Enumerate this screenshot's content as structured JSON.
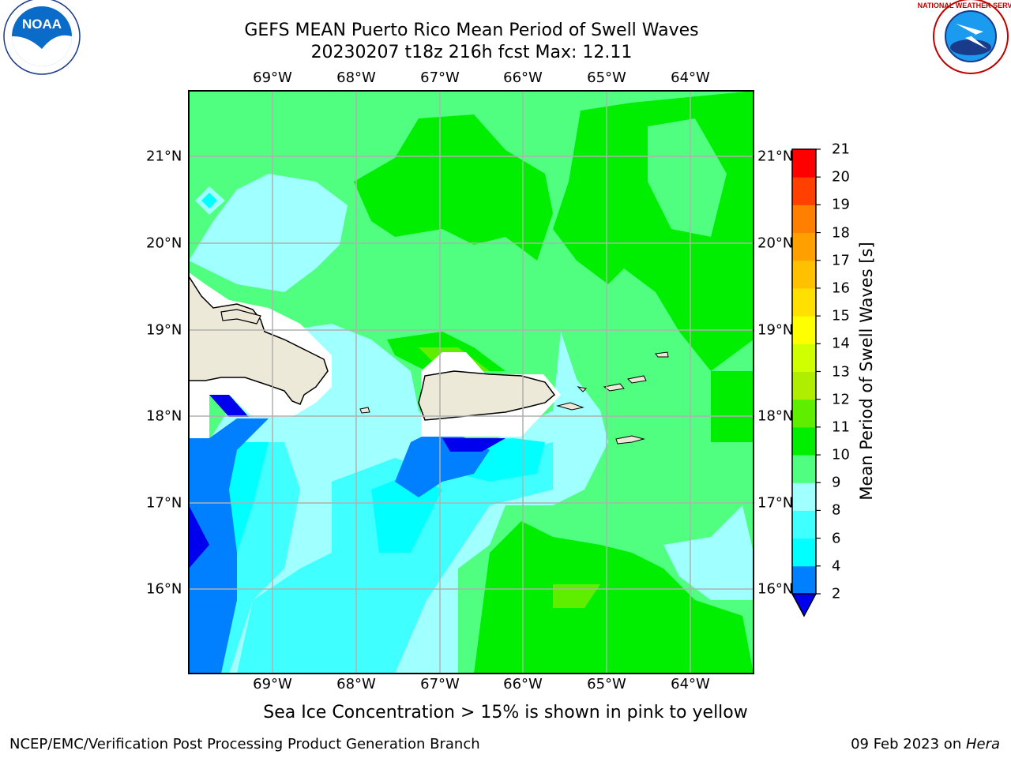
{
  "title": {
    "line1": "GEFS MEAN Puerto Rico Mean Period of Swell Waves",
    "line2": "20230207 t18z 216h fcst   Max: 12.11"
  },
  "lon_labels": [
    "69°W",
    "68°W",
    "67°W",
    "66°W",
    "65°W",
    "64°W"
  ],
  "lat_labels": [
    "21°N",
    "20°N",
    "19°N",
    "18°N",
    "17°N",
    "16°N"
  ],
  "colorbar": {
    "label": "Mean Period of Swell Waves [s]",
    "ticks": [
      "2",
      "4",
      "6",
      "8",
      "9",
      "10",
      "11",
      "12",
      "13",
      "14",
      "15",
      "16",
      "17",
      "18",
      "19",
      "20",
      "21"
    ],
    "colors": [
      "#0000ee",
      "#0080ff",
      "#00ffff",
      "#40ffff",
      "#a0ffff",
      "#50ff80",
      "#00ee00",
      "#60ee00",
      "#b0ee00",
      "#d0ff00",
      "#ffff00",
      "#ffe000",
      "#ffc000",
      "#ffa000",
      "#ff8000",
      "#ff4000",
      "#ff0000"
    ]
  },
  "subtitle": "Sea Ice Concentration > 15% is shown in pink to yellow",
  "footer": {
    "left": "NCEP/EMC/Verification Post Processing Product Generation Branch",
    "right_date": "09 Feb 2023 on ",
    "right_host": "Hera"
  },
  "logos": {
    "left": "NOAA",
    "right": "NATIONAL WEATHER SERVICE"
  }
}
